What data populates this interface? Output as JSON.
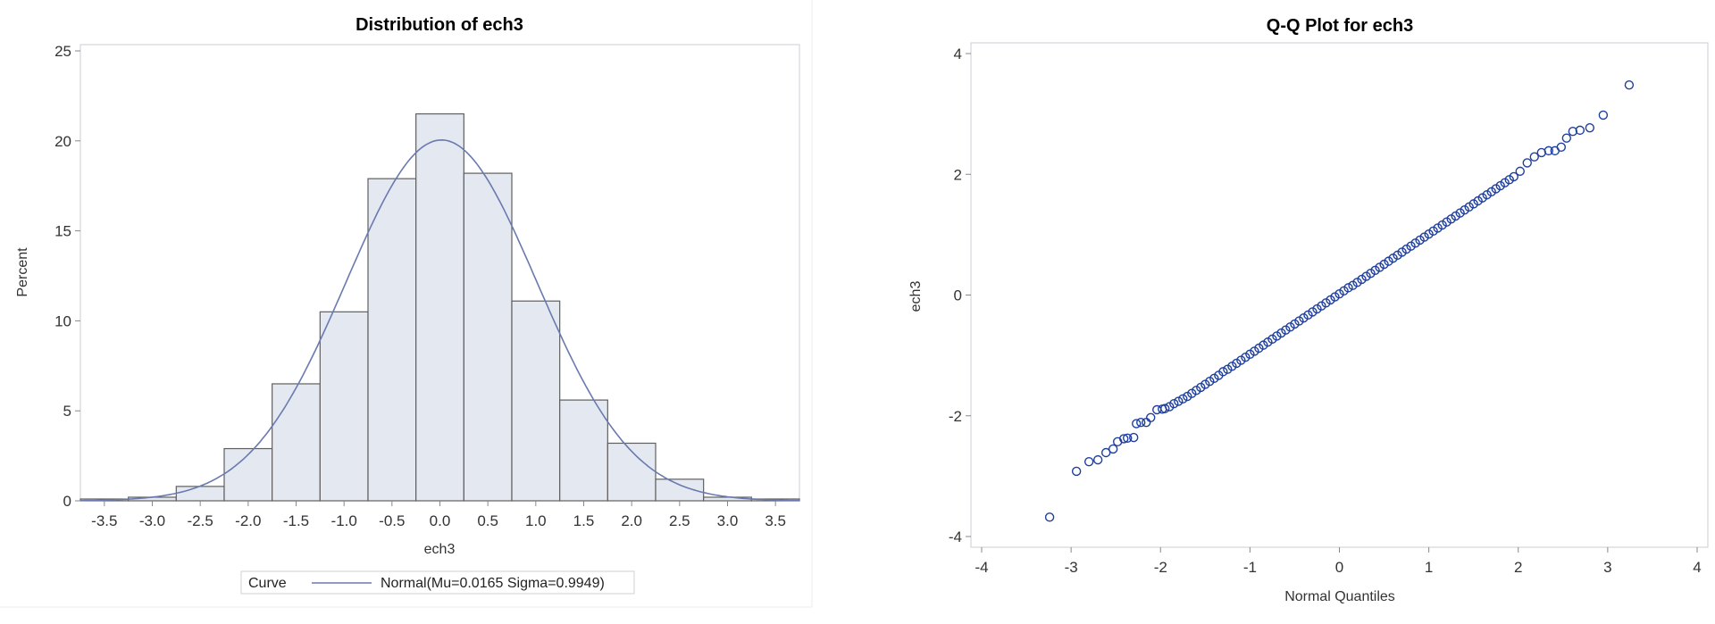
{
  "chart_data": [
    {
      "type": "bar",
      "title": "Distribution of ech3",
      "xlabel": "ech3",
      "ylabel": "Percent",
      "xlim": [
        -3.75,
        3.75
      ],
      "ylim": [
        0,
        25
      ],
      "x_ticks": [
        "-3.5",
        "-3.0",
        "-2.5",
        "-2.0",
        "-1.5",
        "-1.0",
        "-0.5",
        "0.0",
        "0.5",
        "1.0",
        "1.5",
        "2.0",
        "2.5",
        "3.0",
        "3.5"
      ],
      "y_ticks": [
        "0",
        "5",
        "10",
        "15",
        "20",
        "25"
      ],
      "bin_width": 0.5,
      "bin_midpoints": [
        -3.5,
        -3.0,
        -2.5,
        -2.0,
        -1.5,
        -1.0,
        -0.5,
        0.0,
        0.5,
        1.0,
        1.5,
        2.0,
        2.5,
        3.0,
        3.5
      ],
      "values": [
        0.1,
        0.2,
        0.8,
        2.9,
        6.5,
        10.5,
        17.9,
        21.5,
        18.2,
        11.1,
        5.6,
        3.2,
        1.2,
        0.2,
        0.1
      ],
      "curve": {
        "type": "normal",
        "mu": 0.0165,
        "sigma": 0.9949
      },
      "legend": {
        "title": "Curve",
        "entry": "Normal(Mu=0.0165 Sigma=0.9949)",
        "placement": "bottom"
      },
      "grid": false,
      "colors": {
        "bar_fill": "#e4e8f1",
        "bar_stroke": "#5f5f5f",
        "curve": "#6a7aaf"
      }
    },
    {
      "type": "scatter",
      "title": "Q-Q Plot for ech3",
      "xlabel": "Normal Quantiles",
      "ylabel": "ech3",
      "xlim": [
        -4,
        4
      ],
      "ylim": [
        -4,
        4
      ],
      "x_ticks": [
        "-4",
        "-3",
        "-2",
        "-1",
        "0",
        "1",
        "2",
        "3",
        "4"
      ],
      "y_ticks": [
        "-4",
        "-2",
        "0",
        "2",
        "4"
      ],
      "grid": false,
      "colors": {
        "marker": "#1f3f9f"
      },
      "points": [
        [
          -3.24,
          -3.68
        ],
        [
          -2.94,
          -2.92
        ],
        [
          -2.8,
          -2.76
        ],
        [
          -2.7,
          -2.73
        ],
        [
          -2.61,
          -2.61
        ],
        [
          -2.53,
          -2.55
        ],
        [
          -2.48,
          -2.43
        ],
        [
          -2.41,
          -2.38
        ],
        [
          -2.37,
          -2.37
        ],
        [
          -2.3,
          -2.36
        ],
        [
          -2.27,
          -2.13
        ],
        [
          -2.22,
          -2.11
        ],
        [
          -2.16,
          -2.11
        ],
        [
          -2.11,
          -2.03
        ],
        [
          -2.04,
          -1.9
        ],
        [
          -1.98,
          -1.89
        ],
        [
          -1.95,
          -1.88
        ],
        [
          -1.9,
          -1.85
        ],
        [
          -1.85,
          -1.8
        ],
        [
          -1.8,
          -1.76
        ],
        [
          -1.75,
          -1.72
        ],
        [
          -1.7,
          -1.68
        ],
        [
          -1.65,
          -1.63
        ],
        [
          -1.6,
          -1.58
        ],
        [
          -1.55,
          -1.53
        ],
        [
          -1.5,
          -1.48
        ],
        [
          -1.45,
          -1.43
        ],
        [
          -1.4,
          -1.38
        ],
        [
          -1.35,
          -1.33
        ],
        [
          -1.3,
          -1.27
        ],
        [
          -1.25,
          -1.23
        ],
        [
          -1.2,
          -1.18
        ],
        [
          -1.15,
          -1.13
        ],
        [
          -1.1,
          -1.08
        ],
        [
          -1.05,
          -1.03
        ],
        [
          -1.0,
          -0.98
        ],
        [
          -0.95,
          -0.93
        ],
        [
          -0.9,
          -0.88
        ],
        [
          -0.85,
          -0.83
        ],
        [
          -0.8,
          -0.78
        ],
        [
          -0.75,
          -0.73
        ],
        [
          -0.7,
          -0.68
        ],
        [
          -0.65,
          -0.63
        ],
        [
          -0.6,
          -0.58
        ],
        [
          -0.55,
          -0.53
        ],
        [
          -0.5,
          -0.48
        ],
        [
          -0.45,
          -0.43
        ],
        [
          -0.4,
          -0.38
        ],
        [
          -0.35,
          -0.33
        ],
        [
          -0.3,
          -0.28
        ],
        [
          -0.25,
          -0.23
        ],
        [
          -0.2,
          -0.18
        ],
        [
          -0.15,
          -0.13
        ],
        [
          -0.1,
          -0.08
        ],
        [
          -0.05,
          -0.03
        ],
        [
          0.0,
          0.02
        ],
        [
          0.05,
          0.07
        ],
        [
          0.1,
          0.12
        ],
        [
          0.15,
          0.16
        ],
        [
          0.2,
          0.21
        ],
        [
          0.25,
          0.26
        ],
        [
          0.3,
          0.31
        ],
        [
          0.35,
          0.36
        ],
        [
          0.4,
          0.41
        ],
        [
          0.45,
          0.46
        ],
        [
          0.5,
          0.51
        ],
        [
          0.55,
          0.56
        ],
        [
          0.6,
          0.61
        ],
        [
          0.65,
          0.66
        ],
        [
          0.7,
          0.71
        ],
        [
          0.75,
          0.76
        ],
        [
          0.8,
          0.81
        ],
        [
          0.85,
          0.86
        ],
        [
          0.9,
          0.91
        ],
        [
          0.95,
          0.96
        ],
        [
          1.0,
          1.01
        ],
        [
          1.05,
          1.06
        ],
        [
          1.1,
          1.11
        ],
        [
          1.15,
          1.16
        ],
        [
          1.2,
          1.21
        ],
        [
          1.25,
          1.26
        ],
        [
          1.3,
          1.31
        ],
        [
          1.35,
          1.36
        ],
        [
          1.4,
          1.41
        ],
        [
          1.45,
          1.46
        ],
        [
          1.5,
          1.51
        ],
        [
          1.55,
          1.56
        ],
        [
          1.6,
          1.61
        ],
        [
          1.65,
          1.66
        ],
        [
          1.7,
          1.71
        ],
        [
          1.75,
          1.76
        ],
        [
          1.8,
          1.81
        ],
        [
          1.85,
          1.86
        ],
        [
          1.9,
          1.91
        ],
        [
          1.95,
          1.96
        ],
        [
          2.02,
          2.05
        ],
        [
          2.1,
          2.19
        ],
        [
          2.18,
          2.29
        ],
        [
          2.26,
          2.36
        ],
        [
          2.34,
          2.39
        ],
        [
          2.41,
          2.39
        ],
        [
          2.48,
          2.45
        ],
        [
          2.54,
          2.6
        ],
        [
          2.61,
          2.71
        ],
        [
          2.69,
          2.73
        ],
        [
          2.8,
          2.77
        ],
        [
          2.95,
          2.98
        ],
        [
          3.24,
          3.48
        ]
      ]
    }
  ]
}
